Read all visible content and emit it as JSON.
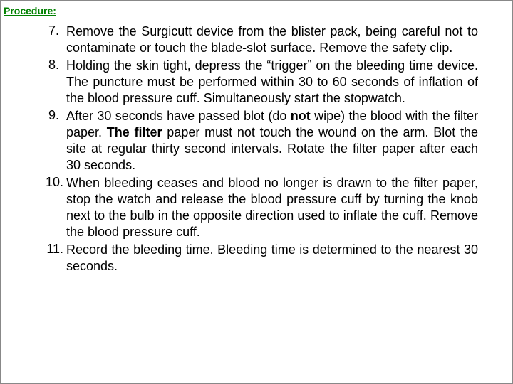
{
  "header": "Procedure:",
  "items": [
    {
      "num": "7.",
      "parts": [
        {
          "t": "Remove the Surgicutt device from the blister pack, being careful not to contaminate or  touch the blade-slot surface.  Remove the safety clip.",
          "b": false
        }
      ]
    },
    {
      "num": "8.",
      "parts": [
        {
          "t": "Holding the skin tight, depress the “trigger” on the bleeding time device.  The puncture must be performed within 30 to 60 seconds of inflation of the blood pressure cuff.  Simultaneously start the stopwatch.",
          "b": false
        }
      ]
    },
    {
      "num": "9.",
      "parts": [
        {
          "t": "After 30 seconds have passed blot (do ",
          "b": false
        },
        {
          "t": "not",
          "b": true
        },
        {
          "t": " wipe) the blood with the filter paper.  ",
          "b": false
        },
        {
          "t": "The filter",
          "b": true
        },
        {
          "t": " paper must not touch the wound on the arm.  Blot the site at regular thirty second intervals.  Rotate the filter paper after each 30 seconds.",
          "b": false
        }
      ]
    },
    {
      "num": "10.",
      "parts": [
        {
          "t": "When bleeding ceases and blood no longer is drawn to the filter paper, stop the watch and release the blood pressure cuff by turning the knob next to the bulb in the opposite direction used to inflate the cuff.  Remove the blood pressure cuff.",
          "b": false
        }
      ]
    },
    {
      "num": "11.",
      "parts": [
        {
          "t": "Record the bleeding time.  Bleeding time is determined to the nearest 30 seconds.",
          "b": false
        }
      ]
    }
  ],
  "style": {
    "header_color": "#008000",
    "text_color": "#000000",
    "background": "#ffffff",
    "font_size_header": 14,
    "font_size_body": 18
  }
}
